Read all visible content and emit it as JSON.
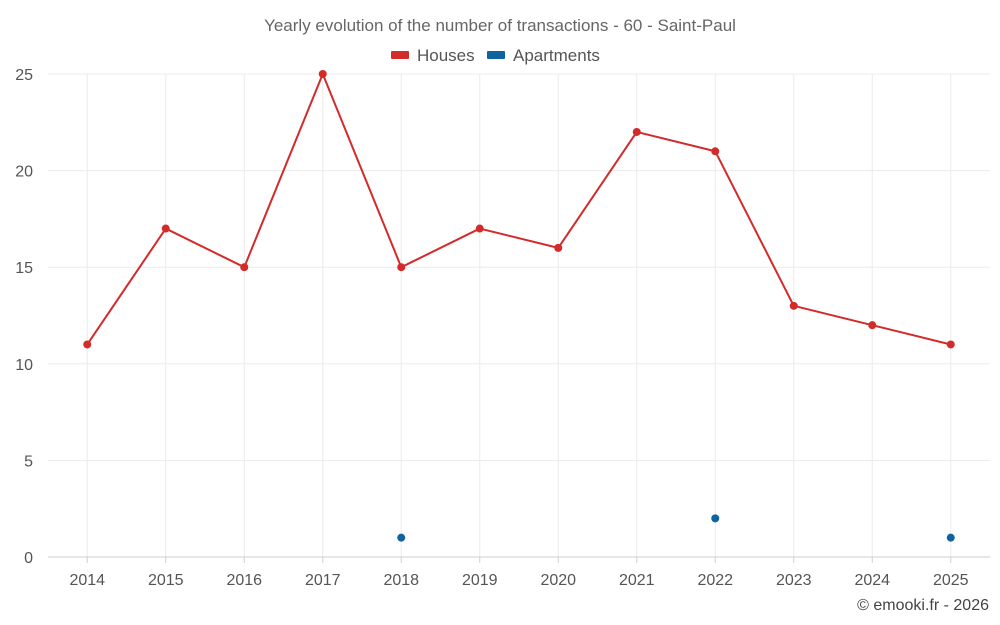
{
  "chart_data": {
    "type": "line",
    "title": "Yearly evolution of the number of transactions - 60 - Saint-Paul",
    "categories": [
      "2014",
      "2015",
      "2016",
      "2017",
      "2018",
      "2019",
      "2020",
      "2021",
      "2022",
      "2023",
      "2024",
      "2025"
    ],
    "series": [
      {
        "name": "Houses",
        "color": "#d32a2a",
        "values": [
          11,
          17,
          15,
          25,
          15,
          17,
          16,
          22,
          21,
          13,
          12,
          11
        ]
      },
      {
        "name": "Apartments",
        "color": "#0f64a0",
        "values": [
          null,
          null,
          null,
          null,
          1,
          null,
          null,
          null,
          2,
          null,
          null,
          1
        ]
      }
    ],
    "ylim": [
      0,
      25
    ],
    "yticks": [
      0,
      5,
      10,
      15,
      20,
      25
    ],
    "xlabel": "",
    "ylabel": "",
    "grid": true,
    "legend": "top-center"
  },
  "credit": "© emooki.fr - 2026"
}
